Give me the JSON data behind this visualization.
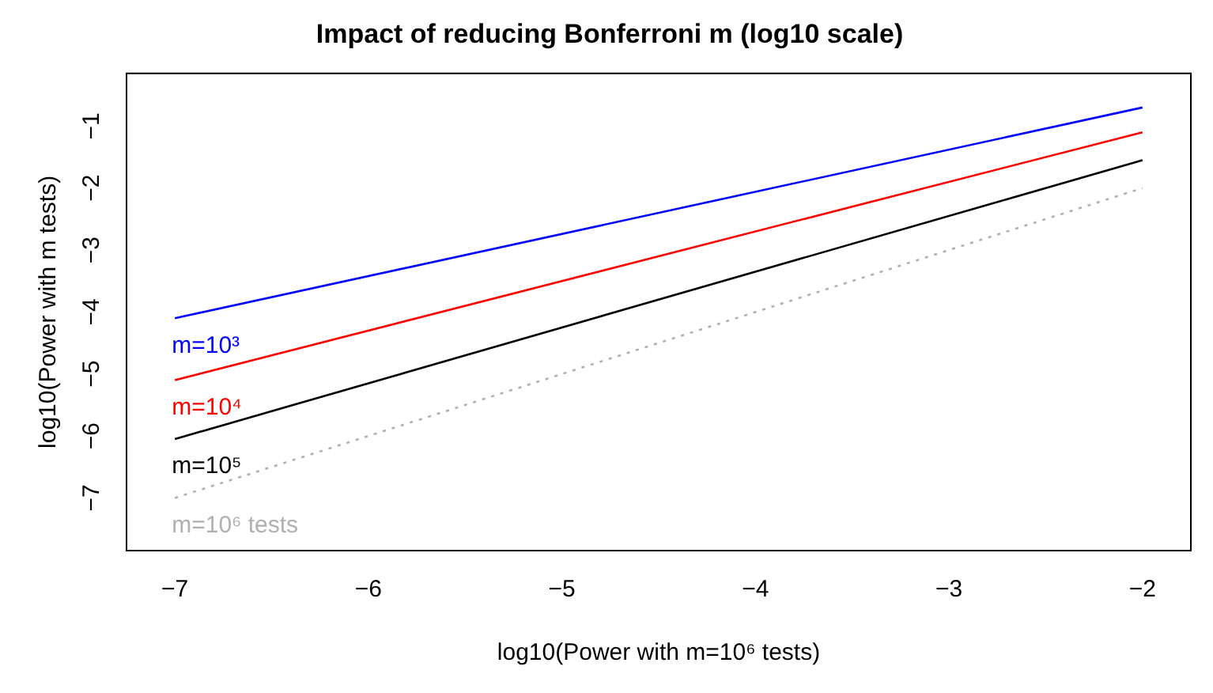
{
  "chart_data": {
    "type": "line",
    "title": "Impact of reducing Bonferroni m (log10 scale)",
    "xlabel": "log10(Power with m=10⁶ tests)",
    "ylabel": "log10(Power with m tests)",
    "x": [
      -7,
      -2
    ],
    "series": [
      {
        "name": "m=10³",
        "color": "#0000ff",
        "values": [
          -4.1,
          -0.7
        ]
      },
      {
        "name": "m=10⁴",
        "color": "#ff0000",
        "values": [
          -5.1,
          -1.1
        ]
      },
      {
        "name": "m=10⁵",
        "color": "#000000",
        "values": [
          -6.05,
          -1.55
        ]
      },
      {
        "name": "m=10⁶ tests",
        "color": "#b0b0b0",
        "values": [
          -7,
          -2
        ],
        "line_style": "dotted"
      }
    ],
    "xlim": [
      -7.25,
      -1.75
    ],
    "ylim": [
      -7.85,
      -0.15
    ],
    "xticks": [
      -7,
      -6,
      -5,
      -4,
      -3,
      -2
    ],
    "yticks": [
      -7,
      -6,
      -5,
      -4,
      -3,
      -2,
      -1
    ],
    "grid": false,
    "legend": false,
    "marker": "none",
    "line_style": "solid"
  }
}
